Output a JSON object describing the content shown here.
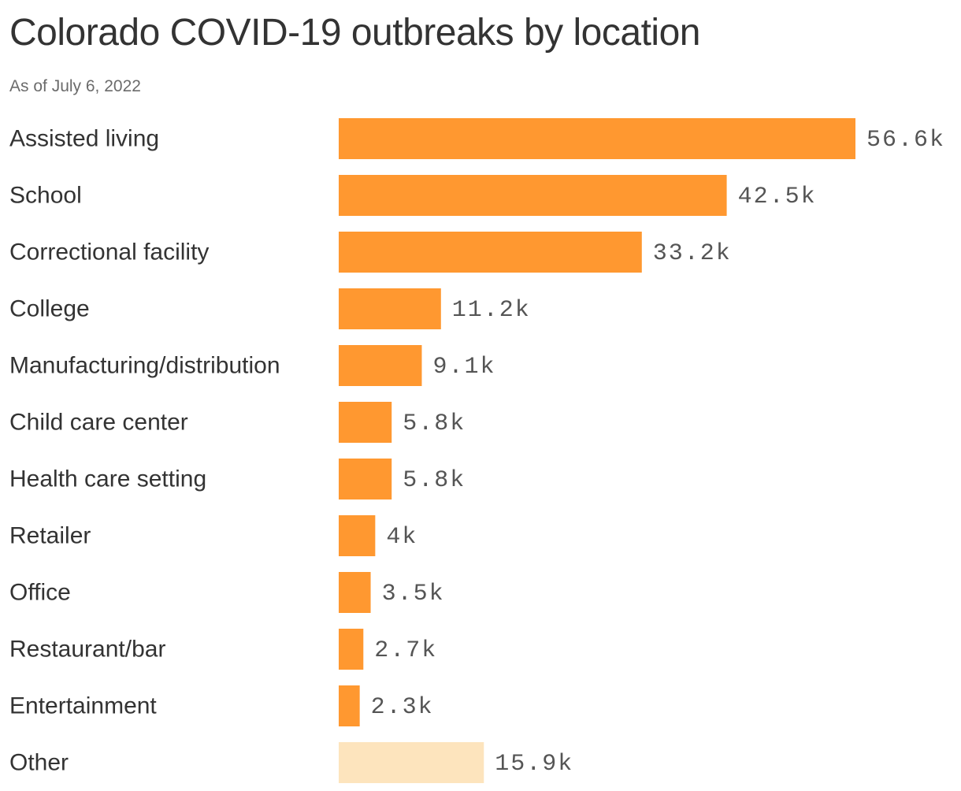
{
  "chart_data": {
    "type": "bar",
    "orientation": "horizontal",
    "title": "Colorado COVID-19 outbreaks by location",
    "subtitle": "As of July 6, 2022",
    "categories": [
      "Assisted living",
      "School",
      "Correctional facility",
      "College",
      "Manufacturing/distribution",
      "Child care center",
      "Health care setting",
      "Retailer",
      "Office",
      "Restaurant/bar",
      "Entertainment",
      "Other"
    ],
    "values": [
      56600,
      42500,
      33200,
      11200,
      9100,
      5800,
      5800,
      4000,
      3500,
      2700,
      2300,
      15900
    ],
    "value_labels": [
      "56.6k",
      "42.5k",
      "33.2k",
      "11.2k",
      "9.1k",
      "5.8k",
      "5.8k",
      "4k",
      "3.5k",
      "2.7k",
      "2.3k",
      "15.9k"
    ],
    "colors": {
      "primary": "#ff9830",
      "other": "#fde4bd"
    },
    "highlight_muted": [
      "Other"
    ],
    "grid": false,
    "legend": "none"
  }
}
